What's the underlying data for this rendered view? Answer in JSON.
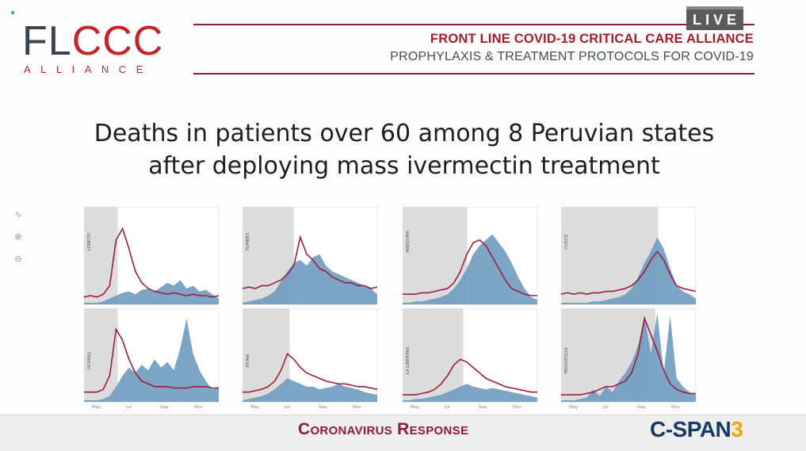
{
  "broadcast": {
    "live_badge": "LIVE",
    "lower_third": "Coronavirus Response",
    "network_logo_main": "C-SPAN",
    "network_logo_num": "3"
  },
  "logo": {
    "main_dark": "FL",
    "main_red": "CCC",
    "sub": "ALLIANCE"
  },
  "header": {
    "line1": "FRONT LINE COVID-19 CRITICAL CARE ALLIANCE",
    "line2": "PROPHYLAXIS & TREATMENT PROTOCOLS FOR COVID-19"
  },
  "slide": {
    "title_line1": "Deaths in patients over 60 among 8 Peruvian states",
    "title_line2": "after deploying mass ivermectin treatment"
  },
  "colors": {
    "brand_red": "#c0262c",
    "line_series": "#9b1c45",
    "area_series": "#6f9bc0",
    "shading": "#dcdcdc",
    "cspan_blue": "#153a64",
    "cspan_gold": "#f0a800"
  },
  "zoom_tools": [
    "pen-icon",
    "zoom-in-icon",
    "zoom-out-icon"
  ],
  "chart_data": {
    "type": "area",
    "x_tick_labels": [
      "May",
      "Jul",
      "Sep",
      "Nov"
    ],
    "panels": [
      {
        "state": "LORETO",
        "shade_end": 0.25,
        "line": [
          4,
          5,
          4,
          6,
          12,
          44,
          52,
          38,
          22,
          14,
          10,
          8,
          7,
          6,
          7,
          6,
          5,
          6,
          5,
          5,
          4,
          5
        ],
        "area": [
          0,
          0,
          0,
          1,
          3,
          5,
          7,
          8,
          6,
          9,
          10,
          8,
          11,
          14,
          12,
          16,
          10,
          12,
          8,
          9,
          6,
          3
        ]
      },
      {
        "state": "TUMBES",
        "shade_end": 0.38,
        "line": [
          10,
          11,
          10,
          12,
          12,
          14,
          16,
          20,
          26,
          46,
          34,
          30,
          24,
          22,
          18,
          16,
          14,
          14,
          12,
          12,
          10,
          11
        ],
        "area": [
          0,
          1,
          2,
          3,
          5,
          8,
          15,
          22,
          28,
          30,
          26,
          32,
          34,
          26,
          22,
          20,
          18,
          16,
          14,
          12,
          10,
          6
        ]
      },
      {
        "state": "AREQUIPA",
        "shade_end": 0.48,
        "line": [
          6,
          6,
          6,
          7,
          7,
          8,
          9,
          10,
          14,
          22,
          34,
          42,
          44,
          40,
          32,
          24,
          16,
          10,
          8,
          6,
          5,
          5
        ],
        "area": [
          0,
          0,
          1,
          1,
          2,
          3,
          4,
          6,
          10,
          16,
          24,
          34,
          40,
          44,
          48,
          42,
          36,
          28,
          18,
          10,
          4,
          2
        ]
      },
      {
        "state": "CUSCO",
        "shade_end": 0.72,
        "line": [
          6,
          7,
          6,
          7,
          6,
          7,
          7,
          8,
          8,
          9,
          10,
          12,
          16,
          22,
          30,
          36,
          30,
          20,
          12,
          10,
          9,
          8
        ],
        "area": [
          0,
          0,
          0,
          0,
          0,
          1,
          1,
          2,
          3,
          4,
          6,
          10,
          18,
          28,
          36,
          46,
          38,
          24,
          12,
          8,
          6,
          3
        ]
      },
      {
        "state": "UCAYALI",
        "shade_end": 0.25,
        "line": [
          6,
          6,
          6,
          8,
          18,
          52,
          44,
          30,
          20,
          14,
          12,
          10,
          10,
          10,
          9,
          9,
          9,
          10,
          10,
          10,
          9,
          9
        ],
        "area": [
          0,
          0,
          0,
          1,
          3,
          10,
          18,
          24,
          20,
          26,
          22,
          30,
          24,
          28,
          22,
          38,
          60,
          34,
          22,
          14,
          8,
          10
        ]
      },
      {
        "state": "PIURA",
        "shade_end": 0.35,
        "line": [
          6,
          6,
          7,
          8,
          10,
          14,
          22,
          34,
          30,
          24,
          20,
          18,
          16,
          14,
          13,
          12,
          12,
          11,
          10,
          10,
          9,
          8
        ],
        "area": [
          0,
          1,
          2,
          3,
          5,
          8,
          12,
          16,
          14,
          12,
          10,
          10,
          8,
          9,
          10,
          12,
          10,
          9,
          8,
          6,
          5,
          4
        ]
      },
      {
        "state": "LA LIBERTAD",
        "shade_end": 0.45,
        "line": [
          4,
          4,
          4,
          5,
          6,
          8,
          12,
          18,
          26,
          30,
          28,
          24,
          20,
          16,
          14,
          12,
          10,
          9,
          8,
          7,
          6,
          6
        ],
        "area": [
          0,
          0,
          1,
          1,
          2,
          3,
          4,
          6,
          8,
          10,
          12,
          10,
          9,
          8,
          9,
          8,
          7,
          6,
          5,
          4,
          3,
          2
        ]
      },
      {
        "state": "MOQUEGUA",
        "shade_end": 0.7,
        "line": [
          4,
          4,
          4,
          4,
          5,
          6,
          8,
          10,
          10,
          12,
          14,
          20,
          34,
          60,
          48,
          36,
          22,
          12,
          8,
          6,
          5,
          5
        ],
        "area": [
          0,
          0,
          0,
          1,
          2,
          8,
          3,
          10,
          6,
          14,
          20,
          28,
          40,
          62,
          34,
          64,
          20,
          62,
          16,
          10,
          6,
          4
        ]
      }
    ]
  }
}
